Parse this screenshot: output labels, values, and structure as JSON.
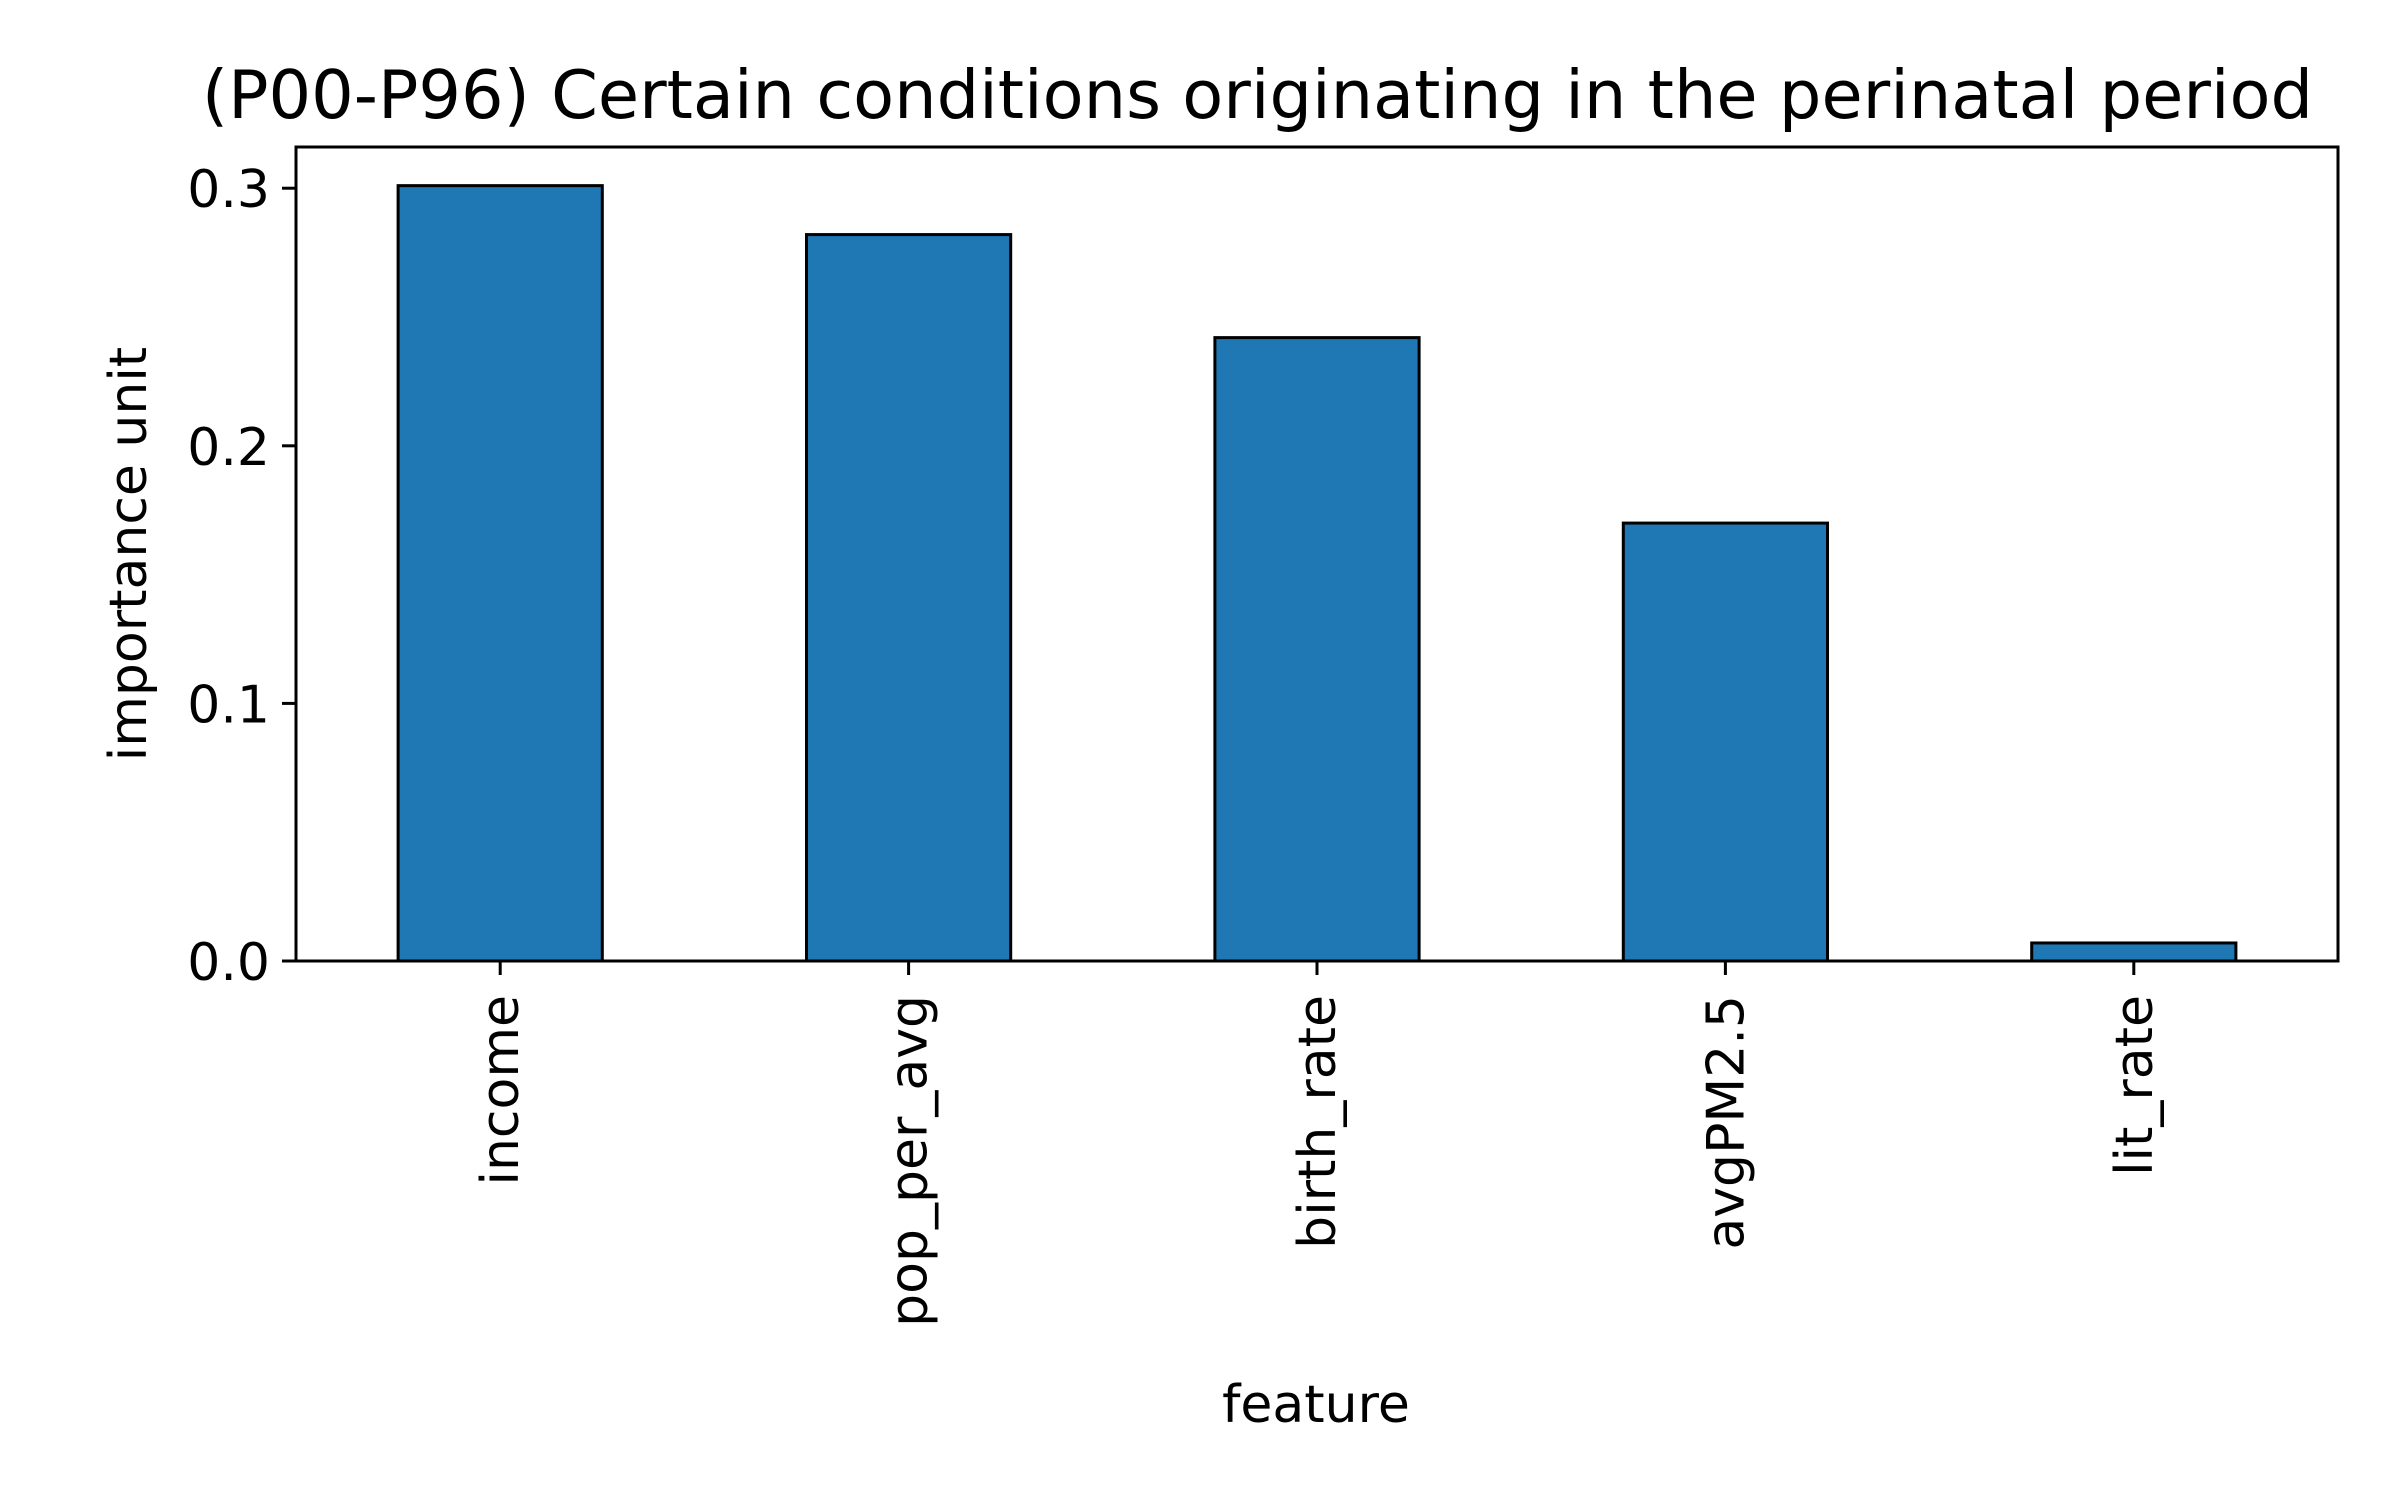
{
  "chart_data": {
    "type": "bar",
    "title": "(P00-P96) Certain conditions originating in the perinatal period",
    "xlabel": "feature",
    "ylabel": "importance unit",
    "categories": [
      "income",
      "pop_per_avg",
      "birth_rate",
      "avgPM2.5",
      "lit_rate"
    ],
    "values": [
      0.301,
      0.282,
      0.242,
      0.17,
      0.007
    ],
    "ylim": [
      0,
      0.316
    ],
    "yticks": [
      0.0,
      0.1,
      0.2,
      0.3
    ],
    "ytick_labels": [
      "0.0",
      "0.1",
      "0.2",
      "0.3"
    ],
    "grid": false,
    "legend": "none",
    "colors": {
      "bar": "#1f77b4",
      "edge": "#000000"
    }
  }
}
